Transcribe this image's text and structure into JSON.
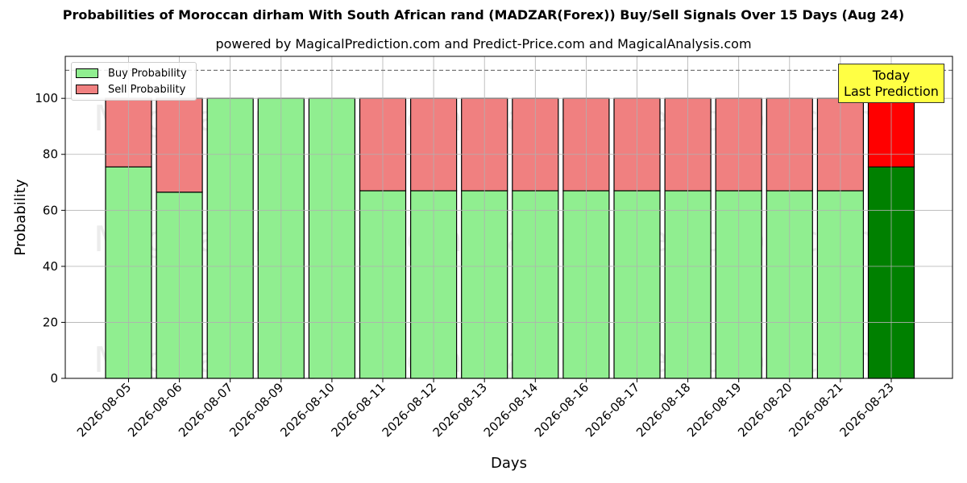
{
  "title": "Probabilities of Moroccan dirham With South African rand (MADZAR(Forex)) Buy/Sell Signals Over 15 Days (Aug 24)",
  "subtitle": "powered by MagicalPrediction.com and Predict-Price.com and MagicalAnalysis.com",
  "watermarks": [
    "MagicalAnalysis.com",
    "MagicalPrediction.com"
  ],
  "annotation": {
    "line1": "Today",
    "line2": "Last Prediction"
  },
  "colors": {
    "buy": "#90ee90",
    "sell": "#f08080",
    "buy_today": "#008000",
    "sell_today": "#ff0000",
    "annotation_bg": "#ffff44"
  },
  "chart_data": {
    "type": "bar",
    "stacked": true,
    "xlabel": "Days",
    "ylabel": "Probability",
    "ylim": [
      0,
      115
    ],
    "yticks": [
      0,
      20,
      40,
      60,
      80,
      100
    ],
    "reference_line": 110,
    "grid": true,
    "legend_position": "top-left",
    "categories": [
      "2026-08-05",
      "2026-08-06",
      "2026-08-07",
      "2026-08-09",
      "2026-08-10",
      "2026-08-11",
      "2026-08-12",
      "2026-08-13",
      "2026-08-14",
      "2026-08-16",
      "2026-08-17",
      "2026-08-18",
      "2026-08-19",
      "2026-08-20",
      "2026-08-21",
      "2026-08-23"
    ],
    "series": [
      {
        "name": "Buy Probability",
        "values": [
          75.5,
          66.5,
          100,
          100,
          100,
          67,
          67,
          67,
          67,
          67,
          67,
          67,
          67,
          67,
          67,
          75.5
        ]
      },
      {
        "name": "Sell Probability",
        "values": [
          24.5,
          33.5,
          0,
          0,
          0,
          33,
          33,
          33,
          33,
          33,
          33,
          33,
          33,
          33,
          33,
          24.5
        ]
      }
    ]
  }
}
